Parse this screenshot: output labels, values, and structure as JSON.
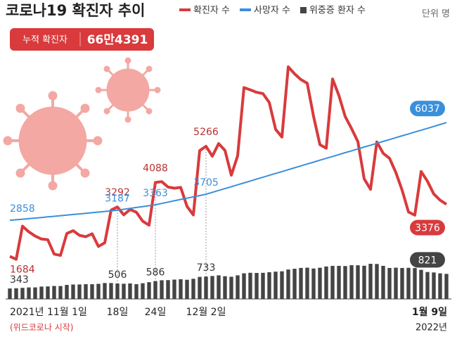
{
  "chart_data": {
    "type": "line",
    "title": "코로나19 확진자 추이",
    "unit_note": "단위 명",
    "badge": {
      "label": "누적 확진자",
      "value": "66만4391"
    },
    "annotations": {
      "start_note": "(위드코로나 시작)",
      "end_year": "2022년"
    },
    "categories": [
      "2021년 11월 1일",
      null,
      null,
      null,
      null,
      null,
      null,
      null,
      null,
      null,
      null,
      null,
      null,
      null,
      null,
      null,
      null,
      "18일",
      null,
      null,
      null,
      null,
      null,
      "24일",
      null,
      null,
      null,
      null,
      null,
      null,
      null,
      "12월 2일",
      null,
      null,
      null,
      null,
      null,
      null,
      null,
      null,
      null,
      null,
      null,
      null,
      null,
      null,
      null,
      null,
      null,
      null,
      null,
      null,
      null,
      null,
      null,
      null,
      null,
      null,
      null,
      null,
      null,
      null,
      null,
      null,
      null,
      null,
      null,
      null,
      null,
      "1월 9일"
    ],
    "series": [
      {
        "name": "확진자 수",
        "color": "#d93a3c",
        "values": [
          1684,
          1589,
          2667,
          2482,
          2343,
          2247,
          2224,
          1758,
          1715,
          2425,
          2520,
          2368,
          2324,
          2419,
          2006,
          2125,
          3187,
          3292,
          3034,
          3206,
          3120,
          2827,
          2699,
          4088,
          4115,
          3938,
          3901,
          3928,
          3309,
          3032,
          5123,
          5266,
          4944,
          5352,
          5128,
          4325,
          4954,
          7175,
          7102,
          7022,
          6977,
          6689,
          5817,
          5567,
          7850,
          7622,
          7435,
          7314,
          6236,
          5318,
          5202,
          7456,
          6919,
          6233,
          5842,
          5419,
          4207,
          3865,
          5409,
          5037,
          4875,
          4415,
          3833,
          3129,
          3024,
          4444,
          4126,
          3713,
          3511,
          3376
        ]
      },
      {
        "name": "사망자 수",
        "color": "#3a8fdb",
        "values": [
          2858,
          2874,
          2893,
          2912,
          2930,
          2948,
          2968,
          2987,
          3007,
          3026,
          3046,
          3065,
          3085,
          3104,
          3124,
          3144,
          3165,
          3187,
          3216,
          3245,
          3274,
          3303,
          3333,
          3363,
          3406,
          3449,
          3492,
          3535,
          3577,
          3620,
          3662,
          3705,
          3766,
          3828,
          3889,
          3951,
          4012,
          4074,
          4135,
          4197,
          4258,
          4320,
          4381,
          4443,
          4504,
          4566,
          4627,
          4689,
          4750,
          4812,
          4873,
          4935,
          4996,
          5057,
          5118,
          5179,
          5240,
          5301,
          5362,
          5423,
          5484,
          5545,
          5606,
          5667,
          5728,
          5789,
          5850,
          5911,
          5974,
          6037
        ]
      },
      {
        "name": "위중증 환자 수",
        "color": "#444444",
        "kind": "bar",
        "values": [
          343,
          351,
          364,
          378,
          379,
          405,
          411,
          425,
          423,
          460,
          473,
          475,
          485,
          483,
          495,
          522,
          522,
          506,
          499,
          508,
          485,
          515,
          549,
          586,
          612,
          617,
          634,
          647,
          629,
          661,
          723,
          733,
          752,
          774,
          744,
          727,
          774,
          840,
          857,
          852,
          856,
          876,
          894,
          906,
          964,
          989,
          1016,
          1025,
          997,
          1022,
          1063,
          1083,
          1084,
          1078,
          1105,
          1102,
          1088,
          1151,
          1145,
          1084,
          1015,
          1024,
          1015,
          1020,
          1015,
          955,
          882,
          868,
          838,
          821
        ]
      }
    ]
  }
}
